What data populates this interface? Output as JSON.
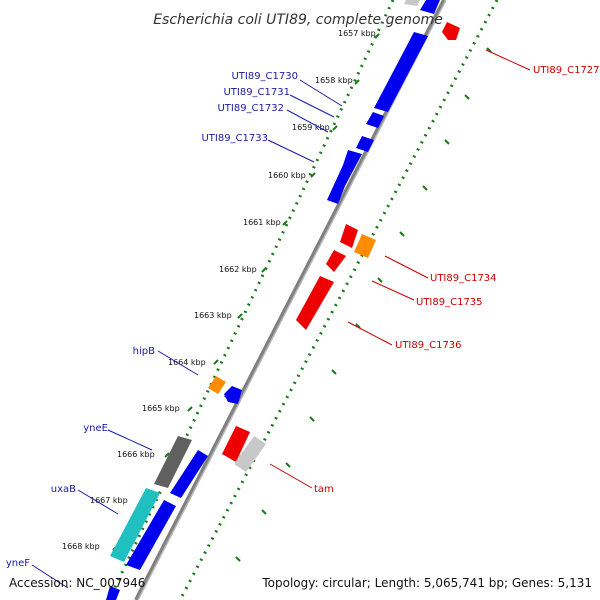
{
  "title": "Escherichia coli UTI89, complete genome",
  "footer": {
    "accession": "Accession: NC_007946",
    "topology": "Topology: circular; Length: 5,065,741 bp; Genes: 5,131"
  },
  "ticks": [
    "1657 kbp",
    "1658 kbp",
    "1659 kbp",
    "1660 kbp",
    "1661 kbp",
    "1662 kbp",
    "1663 kbp",
    "1664 kbp",
    "1665 kbp",
    "1666 kbp",
    "1667 kbp",
    "1668 kbp"
  ],
  "gene_labels": [
    {
      "text": "UTI89_C1730",
      "color": "#1a1aa6"
    },
    {
      "text": "UTI89_C1731",
      "color": "#1a1aa6"
    },
    {
      "text": "UTI89_C1732",
      "color": "#1a1aa6"
    },
    {
      "text": "UTI89_C1733",
      "color": "#1a1aa6"
    },
    {
      "text": "hipB",
      "color": "#1a1aa6"
    },
    {
      "text": "yneE",
      "color": "#1a1aa6"
    },
    {
      "text": "uxaB",
      "color": "#1a1aa6"
    },
    {
      "text": "yneF",
      "color": "#1a1aa6"
    },
    {
      "text": "UTI89_C1727",
      "color": "#cc0000"
    },
    {
      "text": "UTI89_C1734",
      "color": "#cc0000"
    },
    {
      "text": "UTI89_C1735",
      "color": "#cc0000"
    },
    {
      "text": "UTI89_C1736",
      "color": "#cc0000"
    },
    {
      "text": "tam",
      "color": "#cc0000"
    }
  ],
  "colors": {
    "forward_cds": "#0000ee",
    "reverse_cds": "#ee0000",
    "orange_feature": "#ff8c00",
    "gray_feature": "#666666",
    "light_gray_feature": "#c8c8c8",
    "cyan_feature": "#20c0c0",
    "backbone": "#808080",
    "tick_dots": "#1a7a1a"
  }
}
